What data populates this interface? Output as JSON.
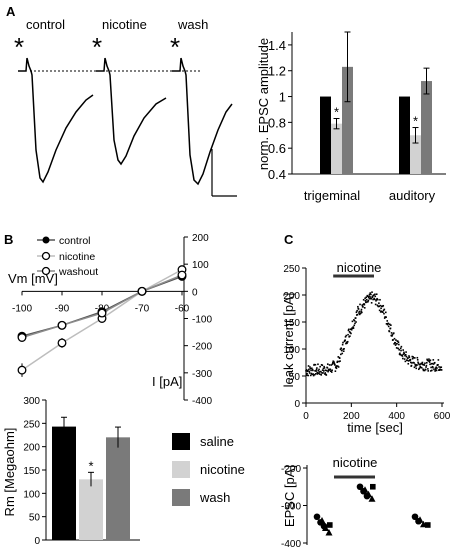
{
  "panels": {
    "a": "A",
    "b": "B",
    "c": "C"
  },
  "traces": {
    "labels": [
      "control",
      "nicotine",
      "wash"
    ],
    "star": "*"
  },
  "chart_data": [
    {
      "id": "A-bar",
      "type": "bar",
      "ylabel": "norm. EPSC amplitude",
      "ylim": [
        0.4,
        1.5
      ],
      "yticks": [
        "0.4",
        "0.6",
        "0.8",
        "1",
        "1.2",
        "1.4"
      ],
      "categories": [
        "trigeminal",
        "auditory"
      ],
      "series": [
        {
          "values": [
            1.0,
            1.0
          ],
          "err": [
            0,
            0
          ],
          "color": "#000000"
        },
        {
          "values": [
            0.79,
            0.7
          ],
          "err": [
            0.04,
            0.06
          ],
          "color": "#d2d2d2"
        },
        {
          "values": [
            1.23,
            1.12
          ],
          "err": [
            0.27,
            0.1
          ],
          "color": "#7a7a7a"
        }
      ],
      "annotations": [
        "*",
        "*"
      ]
    },
    {
      "id": "B-iv",
      "type": "line",
      "xlabel": "Vm [mV]",
      "ylabel": "I [pA]",
      "xticks": [
        "-100",
        "-90",
        "-80",
        "-70",
        "-60"
      ],
      "yticks": [
        "200",
        "100",
        "0",
        "-100",
        "-200",
        "-300",
        "-400"
      ],
      "xlim": [
        -100,
        -60
      ],
      "ylim": [
        -400,
        200
      ],
      "x": [
        -100,
        -90,
        -80,
        -70,
        -60
      ],
      "series": [
        {
          "name": "control",
          "values": [
            -165,
            -125,
            -75,
            0,
            55
          ],
          "err": [
            12,
            10,
            9,
            5,
            10
          ],
          "color": "#555555"
        },
        {
          "name": "nicotine",
          "values": [
            -290,
            -190,
            -100,
            0,
            80
          ],
          "err": [
            25,
            18,
            12,
            5,
            12
          ],
          "color": "#bdbdbd"
        },
        {
          "name": "washout",
          "values": [
            -170,
            -125,
            -80,
            0,
            60
          ],
          "err": [
            12,
            10,
            9,
            5,
            10
          ],
          "color": "#8c8c8c"
        }
      ]
    },
    {
      "id": "B-bar",
      "type": "bar",
      "ylabel": "Rm [Megaohm]",
      "ylim": [
        0,
        300
      ],
      "yticks": [
        "0",
        "50",
        "100",
        "150",
        "200",
        "250",
        "300"
      ],
      "categories": [
        "saline",
        "nicotine",
        "wash"
      ],
      "values": [
        243,
        130,
        220
      ],
      "err": [
        20,
        15,
        22
      ],
      "colors": [
        "#000000",
        "#d2d2d2",
        "#7a7a7a"
      ],
      "legend": [
        "saline",
        "nicotine",
        "wash"
      ],
      "annotations": [
        "*"
      ]
    },
    {
      "id": "C-leak",
      "type": "scatter",
      "xlabel": "time [sec]",
      "ylabel": "leak current [pA]",
      "xlim": [
        0,
        600
      ],
      "ylim": [
        0,
        250
      ],
      "xticks": [
        "0",
        "200",
        "400",
        "600"
      ],
      "yticks": [
        "0",
        "50",
        "100",
        "150",
        "200",
        "250"
      ],
      "bar_label": "nicotine",
      "bar_range": [
        120,
        300
      ],
      "trend": {
        "x": [
          0,
          100,
          140,
          160,
          200,
          230,
          260,
          290,
          310,
          340,
          370,
          400,
          430,
          460,
          500,
          550,
          600
        ],
        "y": [
          60,
          62,
          72,
          100,
          140,
          170,
          185,
          195,
          192,
          172,
          140,
          108,
          88,
          78,
          72,
          70,
          70
        ]
      }
    },
    {
      "id": "C-epsc",
      "type": "scatter",
      "ylabel": "EPSC [pA]",
      "ylim": [
        -400,
        -200
      ],
      "yticks": [
        "-200",
        "-300",
        "-400"
      ],
      "bar_label": "nicotine",
      "groups": [
        {
          "circles": [
            -330,
            -345,
            -355
          ],
          "triangles": [
            -340,
            -360,
            -372
          ],
          "squares": [
            -352
          ]
        },
        {
          "circles": [
            -250,
            -262,
            -275
          ],
          "triangles": [
            -258,
            -270,
            -282
          ],
          "squares": [
            -250
          ]
        },
        {
          "circles": [
            -330,
            -342
          ],
          "triangles": [
            -338,
            -350
          ],
          "squares": [
            -352
          ]
        }
      ]
    }
  ]
}
